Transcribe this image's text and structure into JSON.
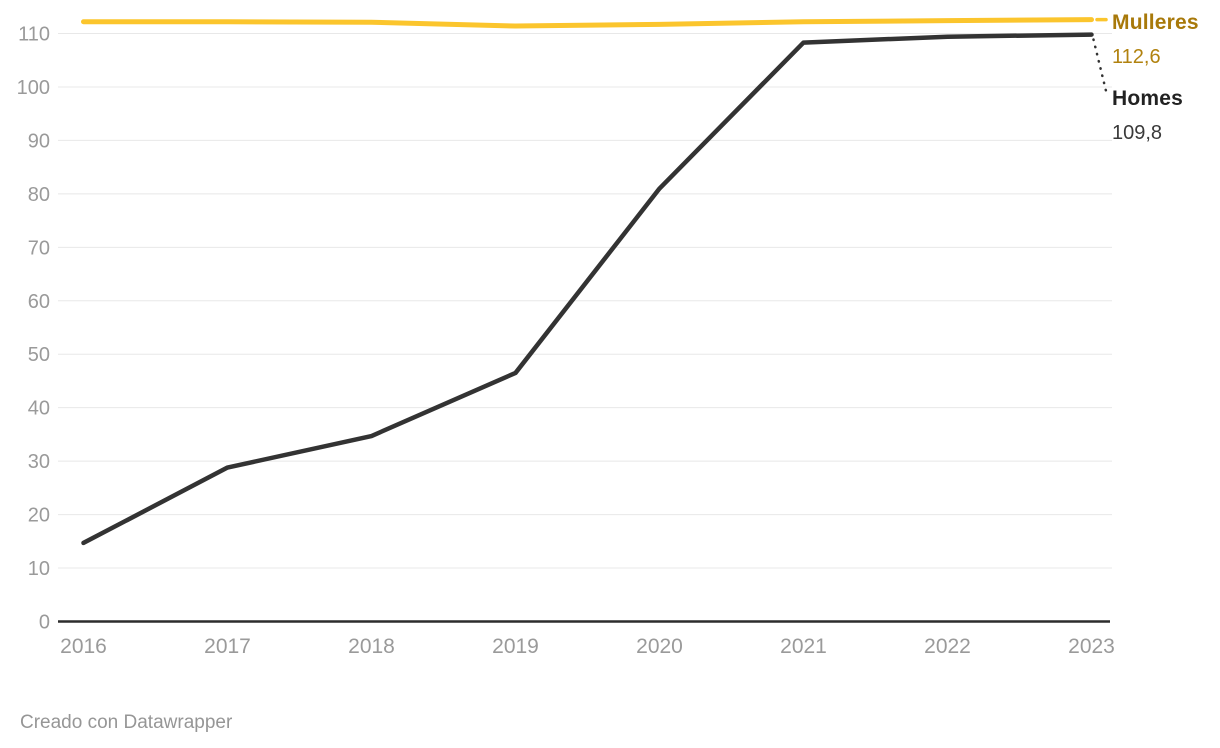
{
  "chart_data": {
    "type": "line",
    "x": [
      "2016",
      "2017",
      "2018",
      "2019",
      "2020",
      "2021",
      "2022",
      "2023"
    ],
    "series": [
      {
        "name": "Mulleres",
        "values": [
          112.2,
          112.2,
          112.1,
          111.4,
          111.7,
          112.2,
          112.4,
          112.6
        ],
        "value_label": "112,6",
        "line_color": "#fbc52d",
        "label_color": "#a8790a"
      },
      {
        "name": "Homes",
        "values": [
          14.7,
          28.8,
          34.7,
          46.5,
          81.0,
          108.3,
          109.4,
          109.8
        ],
        "value_label": "109,8",
        "line_color": "#333333",
        "label_color": "#222222"
      }
    ],
    "yticks": [
      0,
      10,
      20,
      30,
      40,
      50,
      60,
      70,
      80,
      90,
      100,
      110
    ],
    "ylim": [
      0,
      113.5
    ],
    "xlabel": "",
    "ylabel": "",
    "title": "",
    "grid": "horizontal",
    "legend_position": "direct-labels-right"
  },
  "colors": {
    "background": "#ffffff",
    "grid_line": "#e8e8e8",
    "axis_line": "#2d2d2d",
    "tick_label": "#9a9a9a"
  },
  "footer": {
    "credit": "Creado con Datawrapper"
  }
}
